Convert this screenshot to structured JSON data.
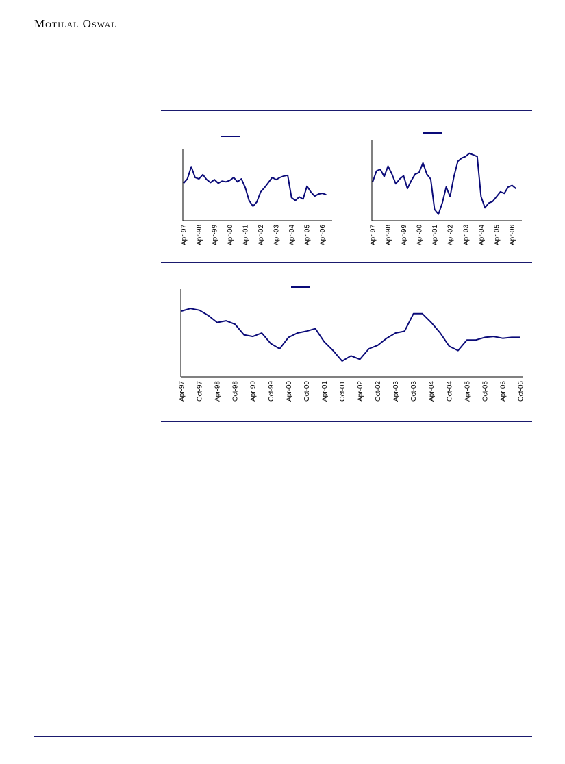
{
  "header": {
    "title": "Motilal Oswal"
  },
  "chart_data": [
    {
      "type": "line",
      "categories": [
        "Apr-97",
        null,
        null,
        null,
        "Apr-98",
        null,
        null,
        null,
        "Apr-99",
        null,
        null,
        null,
        "Apr-00",
        null,
        null,
        null,
        "Apr-01",
        null,
        null,
        null,
        "Apr-02",
        null,
        null,
        null,
        "Apr-03",
        null,
        null,
        null,
        "Apr-04",
        null,
        null,
        null,
        "Apr-05",
        null,
        null,
        null,
        "Apr-06",
        null,
        null
      ],
      "series": [
        {
          "color": "#0a0a78",
          "values": [
            52,
            58,
            75,
            60,
            58,
            64,
            57,
            53,
            57,
            52,
            55,
            54,
            56,
            60,
            54,
            58,
            46,
            28,
            20,
            26,
            40,
            46,
            53,
            60,
            57,
            60,
            62,
            63,
            32,
            28,
            33,
            30,
            48,
            40,
            34,
            37,
            38,
            36,
            null
          ]
        }
      ],
      "ylim": [
        0,
        100
      ]
    },
    {
      "type": "line",
      "categories": [
        "Apr-97",
        null,
        null,
        null,
        "Apr-98",
        null,
        null,
        null,
        "Apr-99",
        null,
        null,
        null,
        "Apr-00",
        null,
        null,
        null,
        "Apr-01",
        null,
        null,
        null,
        "Apr-02",
        null,
        null,
        null,
        "Apr-03",
        null,
        null,
        null,
        "Apr-04",
        null,
        null,
        null,
        "Apr-05",
        null,
        null,
        null,
        "Apr-06",
        null,
        null
      ],
      "series": [
        {
          "color": "#0a0a78",
          "values": [
            48,
            62,
            64,
            55,
            68,
            58,
            46,
            52,
            56,
            40,
            50,
            58,
            60,
            72,
            58,
            52,
            14,
            8,
            22,
            42,
            30,
            55,
            74,
            78,
            80,
            84,
            82,
            80,
            30,
            16,
            22,
            24,
            30,
            36,
            34,
            42,
            44,
            40,
            null
          ]
        }
      ],
      "ylim": [
        0,
        100
      ]
    },
    {
      "type": "line",
      "categories": [
        "Apr-97",
        null,
        "Oct-97",
        null,
        "Apr-98",
        null,
        "Oct-98",
        null,
        "Apr-99",
        null,
        "Oct-99",
        null,
        "Apr-00",
        null,
        "Oct-00",
        null,
        "Apr-01",
        null,
        "Oct-01",
        null,
        "Apr-02",
        null,
        "Oct-02",
        null,
        "Apr-03",
        null,
        "Oct-03",
        null,
        "Apr-04",
        null,
        "Oct-04",
        null,
        "Apr-05",
        null,
        "Oct-05",
        null,
        "Apr-06",
        null,
        "Oct-06"
      ],
      "series": [
        {
          "color": "#0a0a78",
          "values": [
            75,
            78,
            76,
            70,
            62,
            64,
            60,
            48,
            46,
            50,
            38,
            32,
            45,
            50,
            52,
            55,
            40,
            30,
            18,
            24,
            20,
            32,
            36,
            44,
            50,
            52,
            72,
            72,
            62,
            50,
            35,
            30,
            42,
            42,
            45,
            46,
            44,
            45,
            45
          ]
        }
      ],
      "ylim": [
        0,
        100
      ]
    }
  ]
}
